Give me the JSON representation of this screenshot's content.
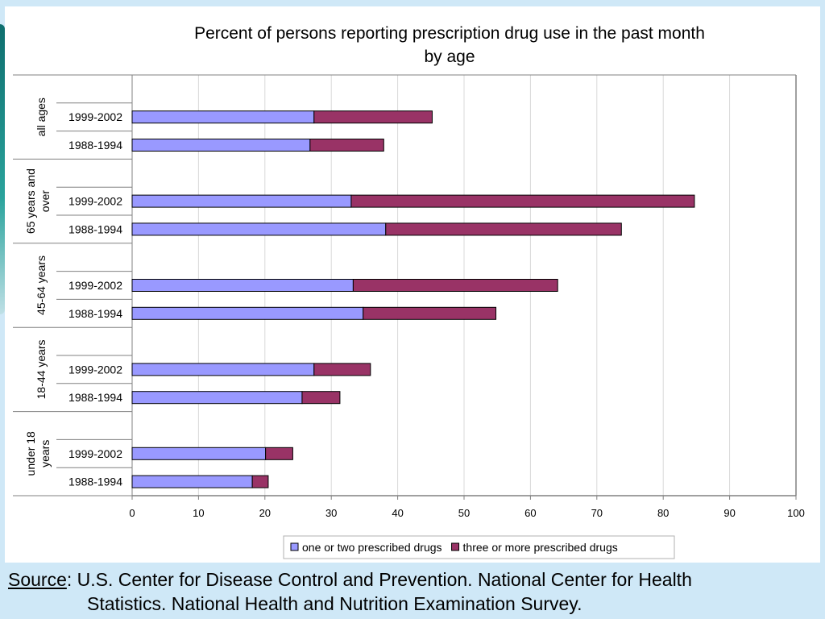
{
  "chart_data": {
    "type": "bar",
    "orientation": "horizontal",
    "stacked": true,
    "title": "Percent of persons reporting prescription drug use in the past month by age",
    "title_lines": [
      "Percent of persons reporting prescription drug use in the past month",
      "by age"
    ],
    "xlim": [
      0,
      100
    ],
    "x_ticks": [
      "0",
      "10",
      "20",
      "30",
      "40",
      "50",
      "60",
      "70",
      "80",
      "90",
      "100"
    ],
    "grid": true,
    "legend_position": "bottom",
    "groups": [
      {
        "label": "all ages",
        "label_lines": [
          "all ages"
        ],
        "bars": [
          {
            "period": "1999-2002",
            "values": [
              27.4,
              17.8
            ]
          },
          {
            "period": "1988-1994",
            "values": [
              26.8,
              11.1
            ]
          }
        ]
      },
      {
        "label": "65 years and over",
        "label_lines": [
          "65 years and",
          "over"
        ],
        "bars": [
          {
            "period": "1999-2002",
            "values": [
              33.0,
              51.7
            ]
          },
          {
            "period": "1988-1994",
            "values": [
              38.2,
              35.5
            ]
          }
        ]
      },
      {
        "label": "45-64 years",
        "label_lines": [
          "45-64 years"
        ],
        "bars": [
          {
            "period": "1999-2002",
            "values": [
              33.3,
              30.8
            ]
          },
          {
            "period": "1988-1994",
            "values": [
              34.8,
              20.0
            ]
          }
        ]
      },
      {
        "label": "18-44 years",
        "label_lines": [
          "18-44 years"
        ],
        "bars": [
          {
            "period": "1999-2002",
            "values": [
              27.4,
              8.5
            ]
          },
          {
            "period": "1988-1994",
            "values": [
              25.6,
              5.7
            ]
          }
        ]
      },
      {
        "label": "under 18 years",
        "label_lines": [
          "under 18",
          "years"
        ],
        "bars": [
          {
            "period": "1999-2002",
            "values": [
              20.1,
              4.1
            ]
          },
          {
            "period": "1988-1994",
            "values": [
              18.1,
              2.4
            ]
          }
        ]
      }
    ],
    "series": [
      {
        "name": "one or two prescribed drugs",
        "color": "#9999ff"
      },
      {
        "name": "three or more prescribed drugs",
        "color": "#993366"
      }
    ]
  },
  "source": {
    "label": "Source",
    "line1": ": U.S. Center for Disease Control and Prevention. National Center for Health",
    "line2": "Statistics. National Health and Nutrition Examination Survey."
  }
}
